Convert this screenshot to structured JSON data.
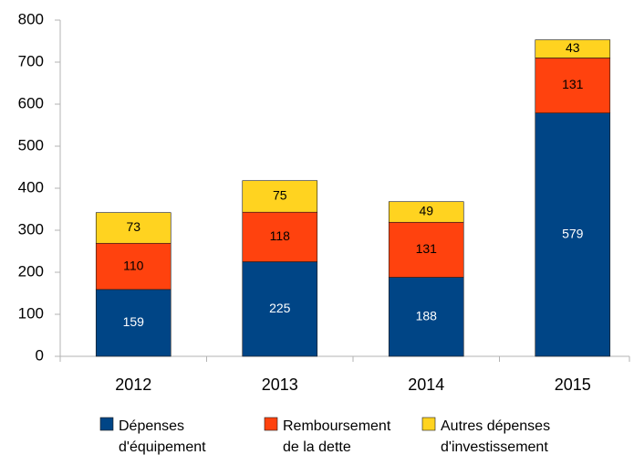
{
  "chart_data": {
    "type": "stacked_bar",
    "categories": [
      "2012",
      "2013",
      "2014",
      "2015"
    ],
    "series": [
      {
        "name": "Dépenses d'équipement",
        "color": "#004586",
        "values": [
          159,
          225,
          188,
          579
        ]
      },
      {
        "name": "Remboursement de la dette",
        "color": "#ff420e",
        "values": [
          110,
          118,
          131,
          131
        ]
      },
      {
        "name": "Autres dépenses d'investissement",
        "color": "#ffd320",
        "values": [
          73,
          75,
          49,
          43
        ]
      }
    ],
    "ylim": [
      0,
      800
    ],
    "yticks": [
      0,
      100,
      200,
      300,
      400,
      500,
      600,
      700,
      800
    ],
    "grid": false,
    "legend": "bottom"
  }
}
